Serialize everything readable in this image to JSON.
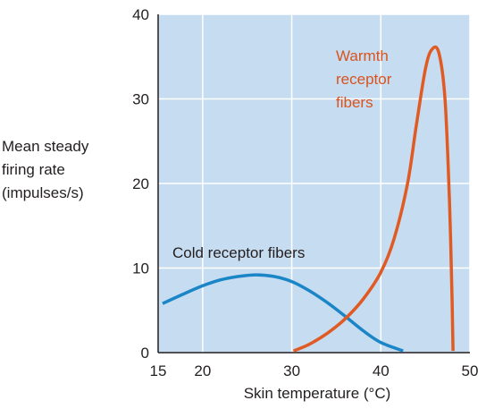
{
  "chart_data": {
    "type": "line",
    "title": "",
    "xlabel": "Skin temperature (°C)",
    "ylabel_lines": [
      "Mean steady",
      "firing rate",
      "(impulses/s)"
    ],
    "xlim": [
      15,
      50
    ],
    "ylim": [
      0,
      40
    ],
    "xticks": [
      15,
      20,
      30,
      40,
      50
    ],
    "yticks": [
      0,
      10,
      20,
      30,
      40
    ],
    "grid": true,
    "legend": "none",
    "colors": {
      "plot_bg": "#c6dcf0",
      "grid": "#ffffff",
      "axis": "#231f20",
      "cold": "#1a86c8",
      "warm": "#e05a24"
    },
    "series": [
      {
        "label_lines": [
          "Cold receptor fibers"
        ],
        "color": "#1a86c8",
        "x": [
          15.5,
          18,
          20,
          22,
          24,
          26,
          28,
          30,
          32,
          34,
          36,
          38,
          40,
          42.5
        ],
        "y": [
          5.8,
          7.0,
          7.9,
          8.6,
          9.0,
          9.2,
          9.0,
          8.4,
          7.3,
          5.9,
          4.3,
          2.6,
          1.2,
          0.2
        ]
      },
      {
        "label_lines": [
          "Warmth",
          "receptor",
          "fibers"
        ],
        "color": "#e05a24",
        "x": [
          30.2,
          32,
          34,
          36,
          38,
          40,
          41.5,
          43,
          44,
          45,
          45.7,
          46.5,
          47.2,
          47.7,
          48.0,
          48.1
        ],
        "y": [
          0.2,
          1.0,
          2.3,
          4.0,
          6.3,
          9.5,
          13.5,
          20.0,
          27.0,
          33.5,
          35.8,
          35.5,
          30.0,
          18.0,
          6.0,
          0.2
        ]
      }
    ]
  }
}
